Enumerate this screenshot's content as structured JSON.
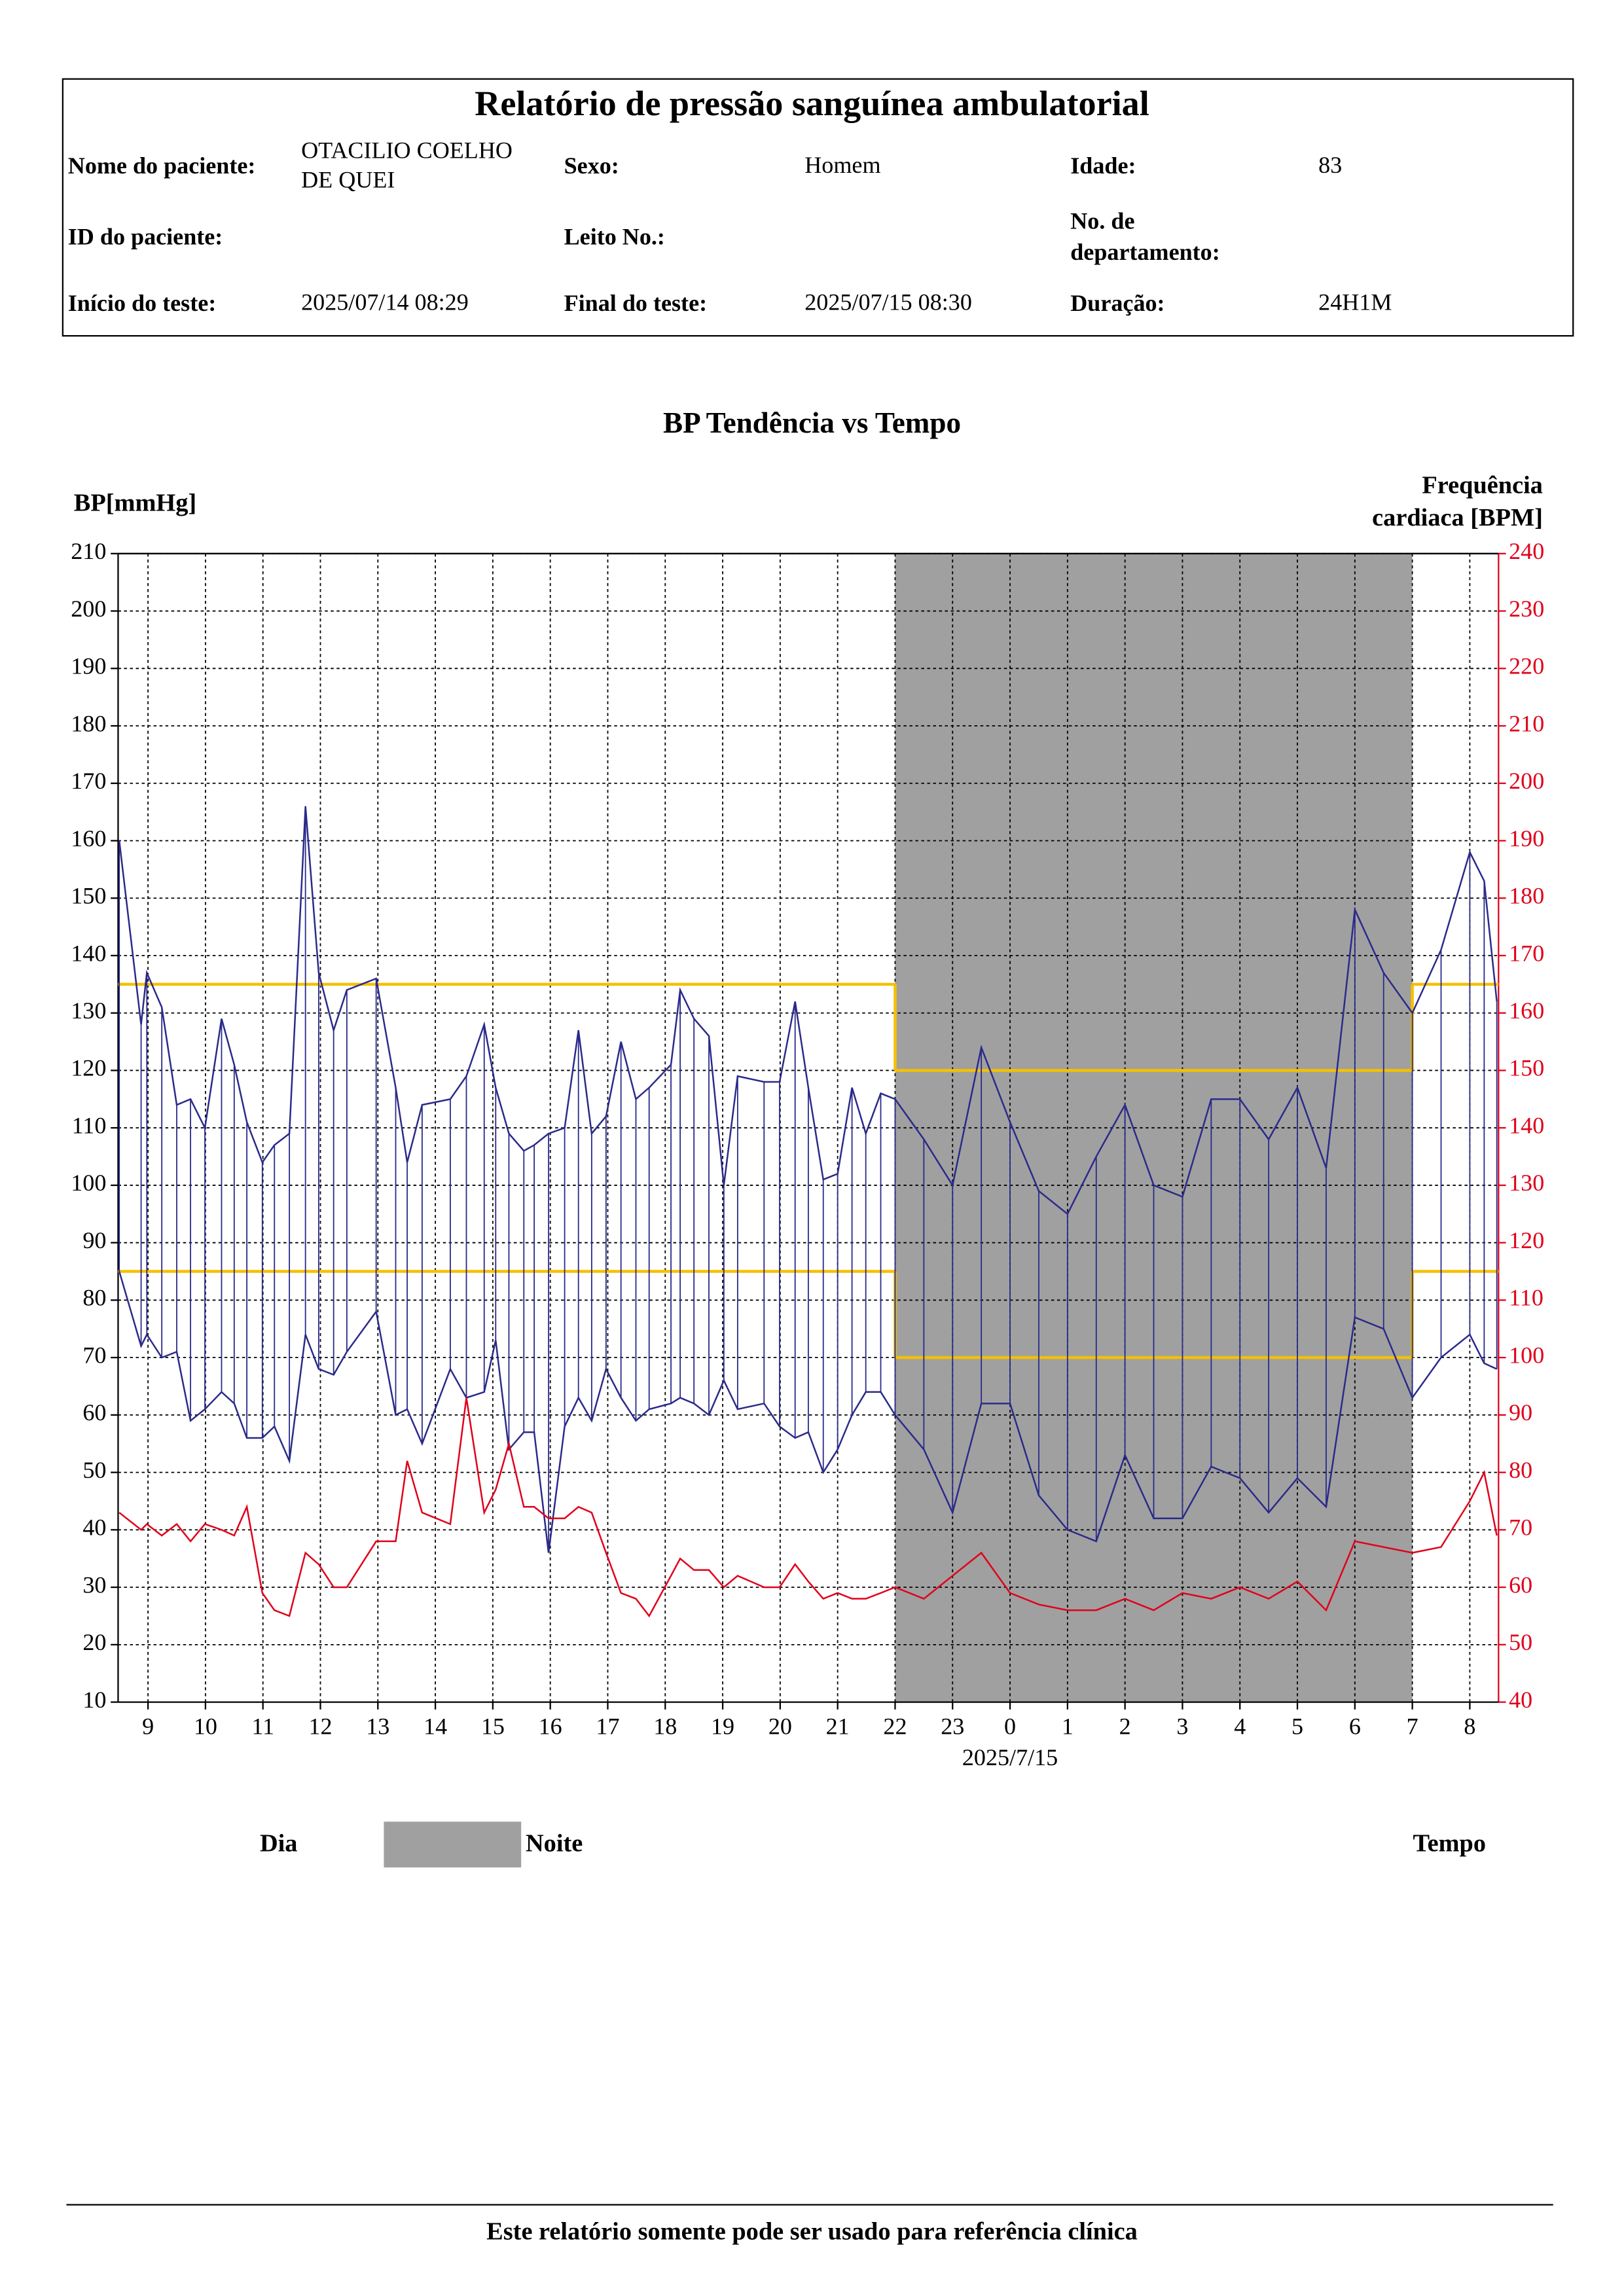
{
  "header": {
    "title": "Relatório de pressão sanguínea ambulatorial",
    "fields": [
      {
        "label": "Nome do paciente:",
        "value": "OTACILIO COELHO  DE QUEI"
      },
      {
        "label": "Sexo:",
        "value": "Homem"
      },
      {
        "label": "Idade:",
        "value": "83"
      },
      {
        "label": "ID do paciente:"
      },
      {
        "label": "Leito No.:"
      },
      {
        "label": "No. de departamento:"
      },
      {
        "label": "Início do teste:",
        "value": "2025/07/14 08:29"
      },
      {
        "label": "Final do teste:",
        "value": "2025/07/15 08:30"
      },
      {
        "label": "Duração:",
        "value": "24H1M"
      }
    ]
  },
  "chart_data": {
    "type": "line",
    "title": "BP Tendência vs Tempo",
    "ylabel": "BP[mmHg]",
    "y2label": "Frequência cardiaca [BPM]",
    "date_label": "2025/7/15",
    "xlabel": "Tempo",
    "legend": {
      "day": "Dia",
      "night": "Noite"
    },
    "night": [
      22,
      31
    ],
    "night_color": "#a0a0a0",
    "grid": true,
    "xlim": [
      8.48,
      32.5
    ],
    "xticks": [
      9,
      10,
      11,
      12,
      13,
      14,
      15,
      16,
      17,
      18,
      19,
      20,
      21,
      22,
      23,
      {
        "value": 24,
        "label": "0"
      },
      {
        "value": 25,
        "label": "1"
      },
      {
        "value": 26,
        "label": "2"
      },
      {
        "value": 27,
        "label": "3"
      },
      {
        "value": 28,
        "label": "4"
      },
      {
        "value": 29,
        "label": "5"
      },
      {
        "value": 30,
        "label": "6"
      },
      {
        "value": 31,
        "label": "7"
      },
      {
        "value": 32,
        "label": "8"
      }
    ],
    "ylim": [
      10,
      210
    ],
    "yticks": [
      10,
      20,
      30,
      40,
      50,
      60,
      70,
      80,
      90,
      100,
      110,
      120,
      130,
      140,
      150,
      160,
      170,
      180,
      190,
      200,
      210
    ],
    "y2lim": [
      40,
      240
    ],
    "y2ticks": [
      40,
      50,
      60,
      70,
      80,
      90,
      100,
      110,
      120,
      130,
      140,
      150,
      160,
      170,
      180,
      190,
      200,
      210,
      220,
      230,
      240
    ],
    "limit_color": "#f5c000",
    "limits": [
      {
        "x": [
          8.48,
          22
        ],
        "systolic": 135,
        "diastolic": 85
      },
      {
        "x": [
          22,
          31
        ],
        "systolic": 120,
        "diastolic": 70
      },
      {
        "x": [
          31,
          32.5
        ],
        "systolic": 135,
        "diastolic": 85
      }
    ],
    "x": [
      8.5,
      8.88,
      8.98,
      9.24,
      9.5,
      9.74,
      9.99,
      10.28,
      10.5,
      10.72,
      10.99,
      11.2,
      11.46,
      11.74,
      11.97,
      12.23,
      12.46,
      12.97,
      13.31,
      13.51,
      13.77,
      14.26,
      14.54,
      14.85,
      15.05,
      15.28,
      15.54,
      15.72,
      15.97,
      16.25,
      16.49,
      16.72,
      16.97,
      17.23,
      17.49,
      17.72,
      18.1,
      18.26,
      18.5,
      18.76,
      19.02,
      19.26,
      19.72,
      19.99,
      20.26,
      20.49,
      20.75,
      21.0,
      21.25,
      21.49,
      21.75,
      22.0,
      22.5,
      23.0,
      23.5,
      24.0,
      24.5,
      25.0,
      25.5,
      26.0,
      26.5,
      27.0,
      27.5,
      28.0,
      28.5,
      29.0,
      29.5,
      30.0,
      30.5,
      31.0,
      31.5,
      32.0,
      32.25,
      32.47
    ],
    "series": [
      {
        "color": "#2a2a8a",
        "values": [
          160,
          128,
          137,
          131,
          114,
          115,
          110,
          129,
          121,
          111,
          104,
          107,
          109,
          166,
          137,
          127,
          134,
          136,
          117,
          104,
          114,
          115,
          119,
          128,
          117,
          109,
          106,
          107,
          109,
          110,
          127,
          109,
          112,
          125,
          115,
          117,
          121,
          134,
          129,
          126,
          100,
          119,
          118,
          118,
          132,
          117,
          101,
          102,
          117,
          109,
          116,
          115,
          108,
          100,
          124,
          111,
          99,
          95,
          105,
          114,
          100,
          98,
          115,
          115,
          108,
          117,
          103,
          148,
          137,
          130,
          141,
          158,
          153,
          132
        ]
      },
      {
        "color": "#2a2a8a",
        "values": [
          85,
          72,
          74,
          70,
          71,
          59,
          61,
          64,
          62,
          56,
          56,
          58,
          52,
          74,
          68,
          67,
          71,
          78,
          60,
          61,
          55,
          68,
          63,
          64,
          73,
          54,
          57,
          57,
          36,
          58,
          63,
          59,
          68,
          63,
          59,
          61,
          62,
          63,
          62,
          60,
          66,
          61,
          62,
          58,
          56,
          57,
          50,
          54,
          60,
          64,
          64,
          60,
          54,
          43,
          62,
          62,
          46,
          40,
          38,
          53,
          42,
          42,
          51,
          49,
          43,
          49,
          44,
          77,
          75,
          63,
          70,
          74,
          69,
          68
        ]
      },
      {
        "color": "#e0001a",
        "axis": "y2",
        "values": [
          73,
          70,
          71,
          69,
          71,
          68,
          71,
          70,
          69,
          74,
          59,
          56,
          55,
          66,
          64,
          60,
          60,
          68,
          68,
          82,
          73,
          71,
          93,
          73,
          77,
          85,
          74,
          74,
          72,
          72,
          74,
          73,
          66,
          59,
          58,
          55,
          62,
          65,
          63,
          63,
          60,
          62,
          60,
          60,
          64,
          61,
          58,
          59,
          58,
          58,
          59,
          60,
          58,
          62,
          66,
          59,
          57,
          56,
          56,
          58,
          56,
          59,
          58,
          60,
          58,
          61,
          56,
          68,
          67,
          66,
          67,
          75,
          80,
          69
        ]
      }
    ]
  },
  "footer": "Este relatório somente pode ser usado para referência clínica"
}
